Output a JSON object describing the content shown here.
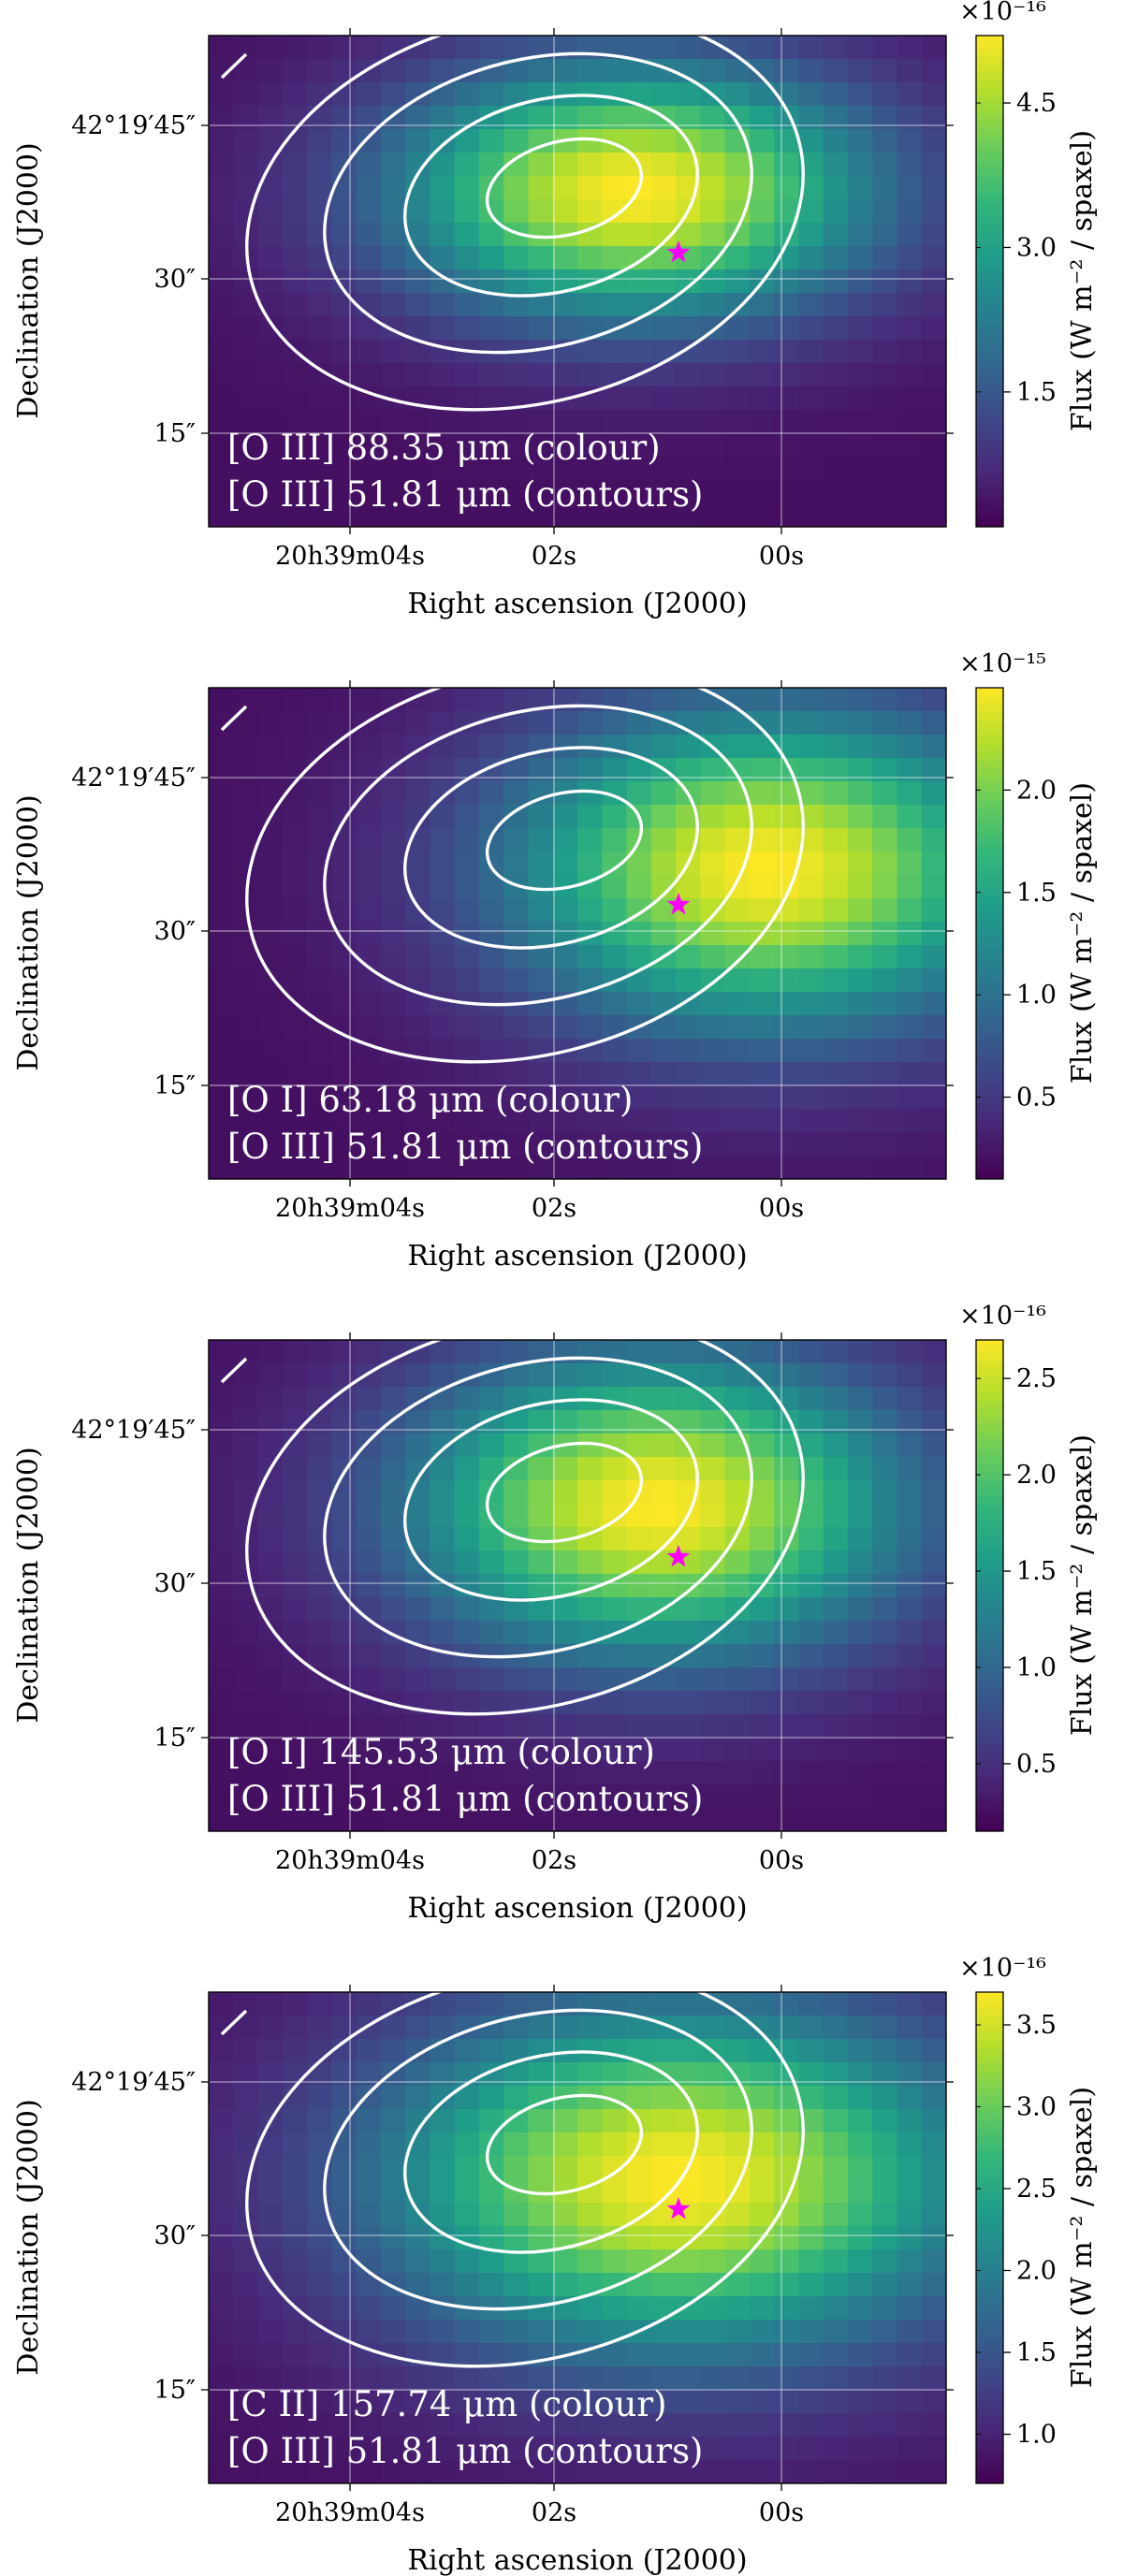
{
  "figure": {
    "panel_count": 4,
    "colormap": "viridis",
    "colormap_stops": [
      "#440154",
      "#482878",
      "#3e4989",
      "#31688e",
      "#26828e",
      "#1f9e89",
      "#35b779",
      "#6ece58",
      "#b5de2b",
      "#fde725"
    ],
    "contour_color": "#ffffff",
    "star_color": "#ff00ff",
    "grid": true
  },
  "chart_data": [
    {
      "type": "heatmap",
      "panel": 1,
      "map_label": "[O III] 88.35 μm (colour)",
      "contour_label": "[O III] 51.81 μm (contours)",
      "xlabel": "Right ascension (J2000)",
      "ylabel": "Declination (J2000)",
      "colorbar_label": "Flux (W m⁻² / spaxel)",
      "colorbar_multiplier": "×10⁻¹⁶",
      "colorbar_range": [
        0.1,
        5.2
      ],
      "colorbar_ticks": [
        "1.5",
        "3.0",
        "4.5"
      ],
      "xticks": [
        "20h39m04s",
        "02s",
        "00s"
      ],
      "yticks": [
        "42°19′45″",
        "30″",
        "15″"
      ],
      "peak": {
        "ra_s": 1.4,
        "dec_arcsec": 40.5
      },
      "sigma_ra_s": 1.55,
      "sigma_dec_arcsec": 8.8,
      "star": {
        "ra_s": 1.0,
        "dec_arcsec": 34.5
      }
    },
    {
      "type": "heatmap",
      "panel": 2,
      "map_label": "[O I] 63.18 μm (colour)",
      "contour_label": "[O III] 51.81 μm (contours)",
      "xlabel": "Right ascension (J2000)",
      "ylabel": "Declination (J2000)",
      "colorbar_label": "Flux (W m⁻² / spaxel)",
      "colorbar_multiplier": "×10⁻¹⁵",
      "colorbar_range": [
        0.1,
        2.5
      ],
      "colorbar_ticks": [
        "0.5",
        "1.0",
        "1.5",
        "2.0"
      ],
      "xticks": [
        "20h39m04s",
        "02s",
        "00s"
      ],
      "yticks": [
        "42°19′45″",
        "30″",
        "15″"
      ],
      "peak": {
        "ra_s": 0.2,
        "dec_arcsec": 38.0
      },
      "sigma_ra_s": 1.65,
      "sigma_dec_arcsec": 11.0,
      "star": {
        "ra_s": 1.0,
        "dec_arcsec": 34.5
      }
    },
    {
      "type": "heatmap",
      "panel": 3,
      "map_label": "[O I] 145.53 μm (colour)",
      "contour_label": "[O III] 51.81 μm (contours)",
      "xlabel": "Right ascension (J2000)",
      "ylabel": "Declination (J2000)",
      "colorbar_label": "Flux (W m⁻² / spaxel)",
      "colorbar_multiplier": "×10⁻¹⁶",
      "colorbar_range": [
        0.15,
        2.7
      ],
      "colorbar_ticks": [
        "0.5",
        "1.0",
        "1.5",
        "2.0",
        "2.5"
      ],
      "xticks": [
        "20h39m04s",
        "02s",
        "00s"
      ],
      "yticks": [
        "42°19′45″",
        "30″",
        "15″"
      ],
      "peak": {
        "ra_s": 1.2,
        "dec_arcsec": 39.5
      },
      "sigma_ra_s": 1.6,
      "sigma_dec_arcsec": 10.5,
      "star": {
        "ra_s": 1.0,
        "dec_arcsec": 34.5
      }
    },
    {
      "type": "heatmap",
      "panel": 4,
      "map_label": "[C II] 157.74 μm (colour)",
      "contour_label": "[O III] 51.81 μm (contours)",
      "xlabel": "Right ascension (J2000)",
      "ylabel": "Declination (J2000)",
      "colorbar_label": "Flux (W m⁻² / spaxel)",
      "colorbar_multiplier": "×10⁻¹⁶",
      "colorbar_range": [
        0.7,
        3.7
      ],
      "colorbar_ticks": [
        "1.0",
        "1.5",
        "2.0",
        "2.5",
        "3.0",
        "3.5"
      ],
      "xticks": [
        "20h39m04s",
        "02s",
        "00s"
      ],
      "yticks": [
        "42°19′45″",
        "30″",
        "15″"
      ],
      "peak": {
        "ra_s": 1.0,
        "dec_arcsec": 37.5
      },
      "sigma_ra_s": 1.9,
      "sigma_dec_arcsec": 12.0,
      "star": {
        "ra_s": 1.0,
        "dec_arcsec": 34.5
      }
    }
  ]
}
